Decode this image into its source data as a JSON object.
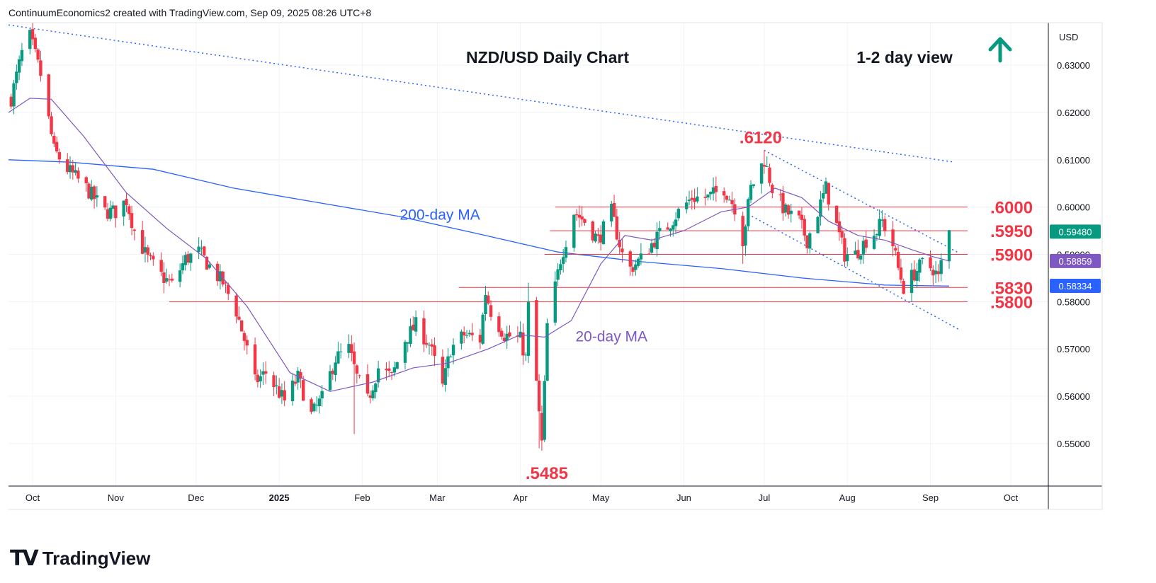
{
  "header_text": "ContinuumEconomics2 created with TradingView.com, Sep 09, 2025 08:26 UTC+8",
  "brand": "TradingView",
  "colors": {
    "up": "#089981",
    "down": "#f23645",
    "ma200": "#2962ff",
    "ma20": "#7e57c2",
    "level": "#f23645",
    "trend": "#2962ff"
  },
  "chart_data": {
    "type": "candlestick",
    "title": "NZD/USD Daily Chart",
    "subtitle": "1-2 day view",
    "currency": "USD",
    "view_arrow": "up-arrow-icon",
    "x_ticks": [
      "Oct",
      "Nov",
      "Dec",
      "2025",
      "Feb",
      "Mar",
      "Apr",
      "May",
      "Jun",
      "Jul",
      "Aug",
      "Sep",
      "Oct"
    ],
    "y_ticks": [
      "0.63000",
      "0.62000",
      "0.61000",
      "0.60000",
      "0.59000",
      "0.58000",
      "0.57000",
      "0.56000",
      "0.55000"
    ],
    "ylim": [
      0.541,
      0.639
    ],
    "x_range": [
      "2024-09-22",
      "2025-10-15"
    ],
    "levels": [
      {
        "label": ".6000",
        "value": 0.6,
        "from": "2025-04-14"
      },
      {
        "label": ".5950",
        "value": 0.595,
        "from": "2025-04-12"
      },
      {
        "label": ".5900",
        "value": 0.59,
        "from": "2025-04-10"
      },
      {
        "label": ".5830",
        "value": 0.583,
        "from": "2025-03-09"
      },
      {
        "label": ".5800",
        "value": 0.58,
        "from": "2024-11-21"
      }
    ],
    "annotations": [
      {
        "text": ".6120",
        "date": "2025-07-01",
        "value": 0.612
      },
      {
        "text": ".5485",
        "date": "2025-04-09",
        "value": 0.5485
      },
      {
        "text": "200-day MA",
        "date": "2025-03-02",
        "value": 0.5985
      },
      {
        "text": "20-day MA",
        "date": "2025-05-05",
        "value": 0.5728
      }
    ],
    "price_tags": [
      {
        "text": "0.59480",
        "value": 0.5948,
        "color": "#089981"
      },
      {
        "text": "0.58859",
        "value": 0.58859,
        "color": "#7e57c2"
      },
      {
        "text": "0.58334",
        "value": 0.58334,
        "color": "#2962ff"
      }
    ],
    "trendlines": [
      {
        "points": [
          [
            "2024-09-22",
            0.6385
          ],
          [
            "2025-09-10",
            0.6095
          ]
        ]
      },
      {
        "points": [
          [
            "2025-07-01",
            0.612
          ],
          [
            "2025-09-11",
            0.5905
          ]
        ]
      },
      {
        "points": [
          [
            "2025-06-25",
            0.5985
          ],
          [
            "2025-09-12",
            0.574
          ]
        ]
      }
    ],
    "candles_anchor": [
      [
        "2024-09-23",
        0.623
      ],
      [
        "2024-09-27",
        0.6325
      ],
      [
        "2024-09-30",
        0.636
      ],
      [
        "2024-10-04",
        0.628
      ],
      [
        "2024-10-09",
        0.612
      ],
      [
        "2024-10-14",
        0.608
      ],
      [
        "2024-10-21",
        0.604
      ],
      [
        "2024-10-28",
        0.599
      ],
      [
        "2024-11-01",
        0.599
      ],
      [
        "2024-11-05",
        0.6015
      ],
      [
        "2024-11-08",
        0.595
      ],
      [
        "2024-11-13",
        0.589
      ],
      [
        "2024-11-18",
        0.5855
      ],
      [
        "2024-11-22",
        0.5835
      ],
      [
        "2024-11-27",
        0.589
      ],
      [
        "2024-12-02",
        0.5905
      ],
      [
        "2024-12-06",
        0.5875
      ],
      [
        "2024-12-11",
        0.584
      ],
      [
        "2024-12-16",
        0.578
      ],
      [
        "2024-12-19",
        0.572
      ],
      [
        "2024-12-23",
        0.563
      ],
      [
        "2024-12-27",
        0.565
      ],
      [
        "2025-01-03",
        0.559
      ],
      [
        "2025-01-08",
        0.564
      ],
      [
        "2025-01-13",
        0.556
      ],
      [
        "2025-01-17",
        0.5595
      ],
      [
        "2025-01-22",
        0.568
      ],
      [
        "2025-01-27",
        0.57
      ],
      [
        "2025-01-30",
        0.564
      ],
      [
        "2025-02-03",
        0.559
      ],
      [
        "2025-02-07",
        0.566
      ],
      [
        "2025-02-12",
        0.564
      ],
      [
        "2025-02-17",
        0.572
      ],
      [
        "2025-02-21",
        0.575
      ],
      [
        "2025-02-26",
        0.571
      ],
      [
        "2025-03-03",
        0.562
      ],
      [
        "2025-03-06",
        0.57
      ],
      [
        "2025-03-11",
        0.573
      ],
      [
        "2025-03-17",
        0.572
      ],
      [
        "2025-03-19",
        0.582
      ],
      [
        "2025-03-21",
        0.578
      ],
      [
        "2025-03-26",
        0.573
      ],
      [
        "2025-04-01",
        0.572
      ],
      [
        "2025-04-03",
        0.568
      ],
      [
        "2025-04-04",
        0.579
      ],
      [
        "2025-04-07",
        0.563
      ],
      [
        "2025-04-08",
        0.556
      ],
      [
        "2025-04-09",
        0.55
      ],
      [
        "2025-04-10",
        0.562
      ],
      [
        "2025-04-11",
        0.575
      ],
      [
        "2025-04-14",
        0.583
      ],
      [
        "2025-04-16",
        0.589
      ],
      [
        "2025-04-21",
        0.599
      ],
      [
        "2025-04-25",
        0.597
      ],
      [
        "2025-04-30",
        0.593
      ],
      [
        "2025-05-05",
        0.599
      ],
      [
        "2025-05-09",
        0.59
      ],
      [
        "2025-05-12",
        0.587
      ],
      [
        "2025-05-16",
        0.589
      ],
      [
        "2025-05-21",
        0.593
      ],
      [
        "2025-05-26",
        0.596
      ],
      [
        "2025-05-30",
        0.599
      ],
      [
        "2025-06-04",
        0.602
      ],
      [
        "2025-06-10",
        0.602
      ],
      [
        "2025-06-16",
        0.604
      ],
      [
        "2025-06-20",
        0.6
      ],
      [
        "2025-06-23",
        0.593
      ],
      [
        "2025-06-26",
        0.604
      ],
      [
        "2025-07-01",
        0.61
      ],
      [
        "2025-07-04",
        0.604
      ],
      [
        "2025-07-09",
        0.599
      ],
      [
        "2025-07-14",
        0.597
      ],
      [
        "2025-07-17",
        0.593
      ],
      [
        "2025-07-21",
        0.599
      ],
      [
        "2025-07-24",
        0.604
      ],
      [
        "2025-07-28",
        0.596
      ],
      [
        "2025-07-31",
        0.59
      ],
      [
        "2025-08-04",
        0.59
      ],
      [
        "2025-08-08",
        0.593
      ],
      [
        "2025-08-12",
        0.595
      ],
      [
        "2025-08-14",
        0.597
      ],
      [
        "2025-08-18",
        0.592
      ],
      [
        "2025-08-20",
        0.587
      ],
      [
        "2025-08-22",
        0.583
      ],
      [
        "2025-08-26",
        0.586
      ],
      [
        "2025-08-29",
        0.588
      ],
      [
        "2025-09-02",
        0.587
      ],
      [
        "2025-09-04",
        0.585
      ],
      [
        "2025-09-05",
        0.588
      ],
      [
        "2025-09-08",
        0.5948
      ]
    ],
    "ma200": [
      [
        "2024-09-22",
        0.61
      ],
      [
        "2024-10-15",
        0.6095
      ],
      [
        "2024-11-15",
        0.608
      ],
      [
        "2024-12-15",
        0.604
      ],
      [
        "2025-01-15",
        0.601
      ],
      [
        "2025-02-15",
        0.598
      ],
      [
        "2025-03-15",
        0.5945
      ],
      [
        "2025-04-15",
        0.5905
      ],
      [
        "2025-05-15",
        0.5885
      ],
      [
        "2025-06-15",
        0.587
      ],
      [
        "2025-07-15",
        0.585
      ],
      [
        "2025-08-15",
        0.5835
      ],
      [
        "2025-09-08",
        0.5833
      ]
    ],
    "ma20": [
      [
        "2024-09-22",
        0.62
      ],
      [
        "2024-09-30",
        0.623
      ],
      [
        "2024-10-08",
        0.6228
      ],
      [
        "2024-10-20",
        0.615
      ],
      [
        "2024-11-05",
        0.603
      ],
      [
        "2024-11-20",
        0.5955
      ],
      [
        "2024-12-05",
        0.589
      ],
      [
        "2024-12-20",
        0.579
      ],
      [
        "2025-01-05",
        0.565
      ],
      [
        "2025-01-20",
        0.561
      ],
      [
        "2025-02-05",
        0.563
      ],
      [
        "2025-02-20",
        0.566
      ],
      [
        "2025-03-05",
        0.567
      ],
      [
        "2025-03-20",
        0.57
      ],
      [
        "2025-04-01",
        0.573
      ],
      [
        "2025-04-10",
        0.5725
      ],
      [
        "2025-04-20",
        0.576
      ],
      [
        "2025-05-01",
        0.588
      ],
      [
        "2025-05-10",
        0.594
      ],
      [
        "2025-05-20",
        0.593
      ],
      [
        "2025-06-01",
        0.595
      ],
      [
        "2025-06-15",
        0.599
      ],
      [
        "2025-06-25",
        0.6
      ],
      [
        "2025-07-05",
        0.604
      ],
      [
        "2025-07-15",
        0.602
      ],
      [
        "2025-07-25",
        0.597
      ],
      [
        "2025-08-05",
        0.594
      ],
      [
        "2025-08-15",
        0.593
      ],
      [
        "2025-08-25",
        0.591
      ],
      [
        "2025-09-02",
        0.5895
      ],
      [
        "2025-09-08",
        0.5886
      ]
    ]
  }
}
